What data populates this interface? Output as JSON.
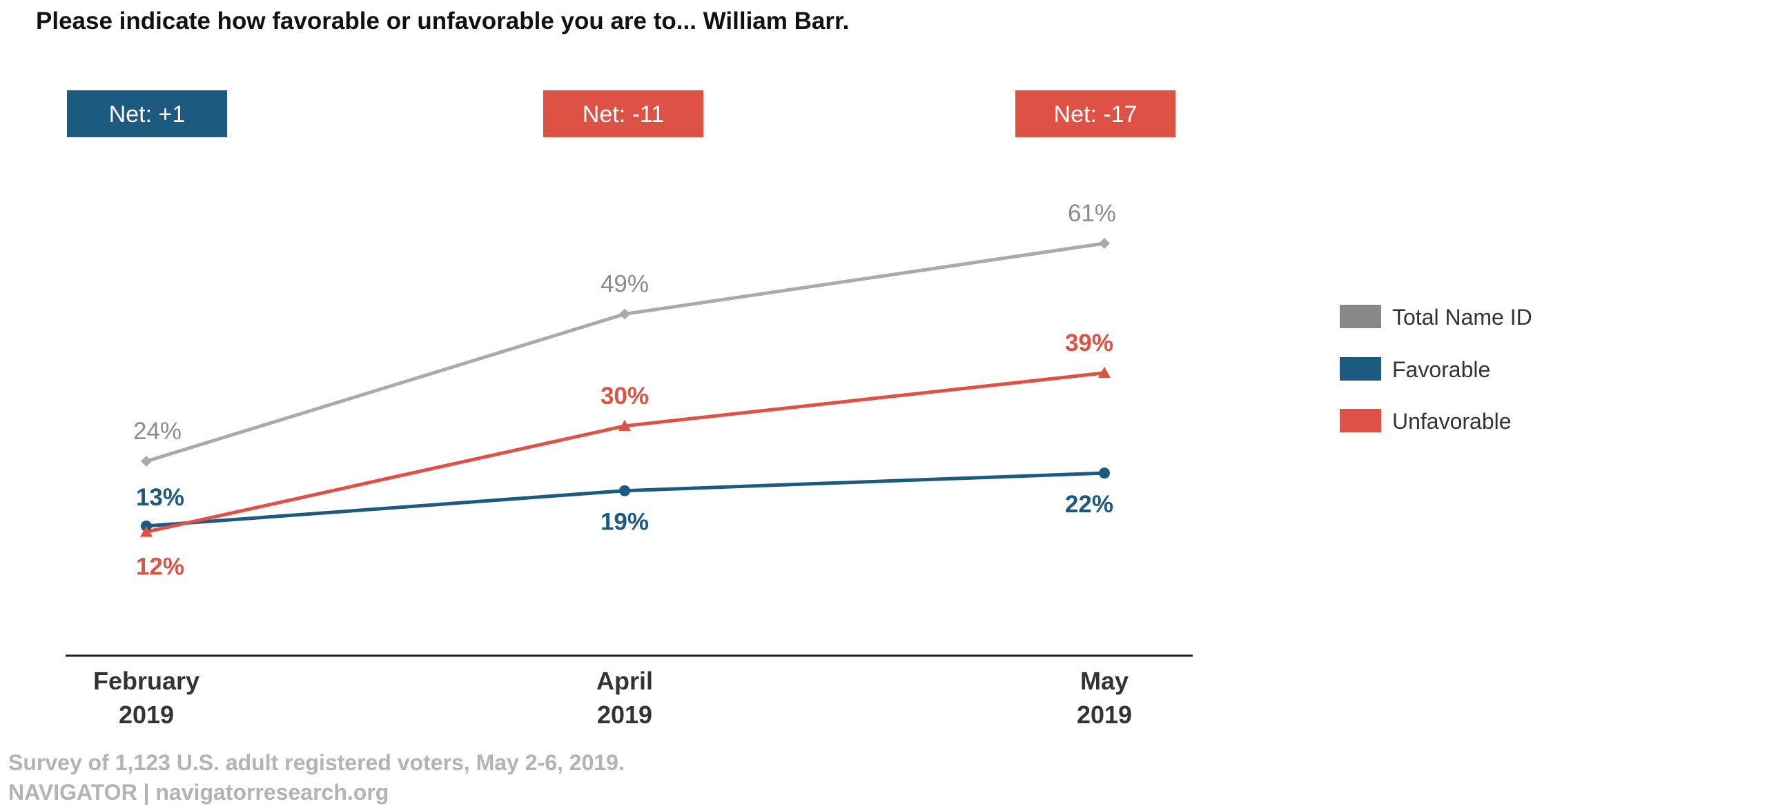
{
  "chart_data": {
    "type": "line",
    "title": "Please indicate how favorable or unfavorable you are to... William Barr.",
    "categories": [
      {
        "line1": "February",
        "line2": "2019"
      },
      {
        "line1": "April",
        "line2": "2019"
      },
      {
        "line1": "May",
        "line2": "2019"
      }
    ],
    "ylim": [
      0,
      70
    ],
    "grid": false,
    "legend_position": "right",
    "series": [
      {
        "name": "Total Name ID",
        "key": "total",
        "values": [
          24,
          49,
          61
        ],
        "labels": [
          "24%",
          "49%",
          "61%"
        ],
        "color": "#aaaaaa",
        "label_color": "#8c8c8c",
        "legend_color": "#888888",
        "marker": "diamond",
        "label_bold": false
      },
      {
        "name": "Favorable",
        "key": "favorable",
        "values": [
          13,
          19,
          22
        ],
        "labels": [
          "13%",
          "19%",
          "22%"
        ],
        "color": "#1c5a80",
        "label_color": "#1c5a80",
        "legend_color": "#1c5a80",
        "marker": "circle",
        "label_bold": true
      },
      {
        "name": "Unfavorable",
        "key": "unfavorable",
        "values": [
          12,
          30,
          39
        ],
        "labels": [
          "12%",
          "30%",
          "39%"
        ],
        "color": "#de5246",
        "label_color": "#de5246",
        "legend_color": "#de5246",
        "marker": "triangle",
        "label_bold": true
      }
    ],
    "net": [
      {
        "label": "Net: +1",
        "color": "#1c5a80"
      },
      {
        "label": "Net: -11",
        "color": "#de5246"
      },
      {
        "label": "Net: -17",
        "color": "#de5246"
      }
    ]
  },
  "footer": {
    "line1": "Survey of 1,123 U.S. adult registered voters, May 2-6, 2019.",
    "line2": "NAVIGATOR | navigatorresearch.org"
  }
}
